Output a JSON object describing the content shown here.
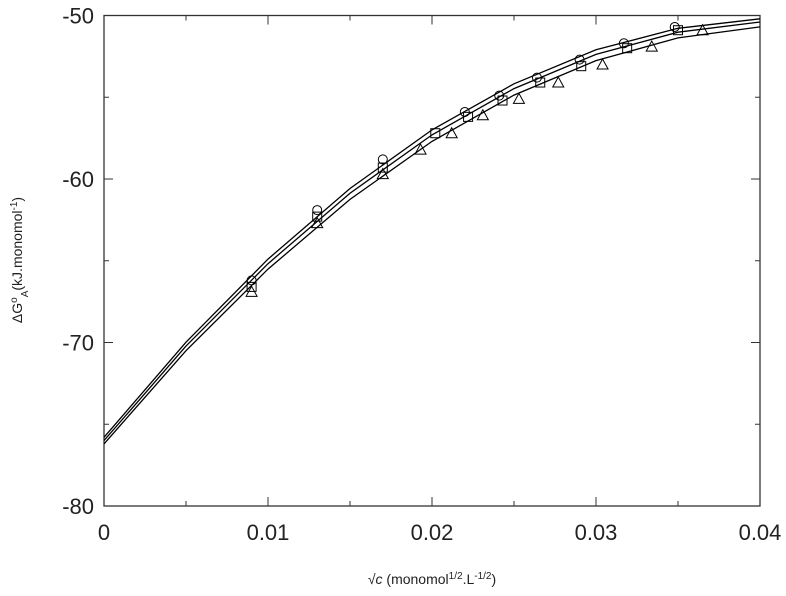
{
  "chart_data": {
    "type": "scatter",
    "xlabel": [
      {
        "t": "√"
      },
      {
        "t": "c",
        "s": "italic"
      },
      {
        "t": " (monomol"
      },
      {
        "t": "1/2",
        "s": "sup"
      },
      {
        "t": ".L"
      },
      {
        "t": "-1/2",
        "s": "sup"
      },
      {
        "t": ")"
      }
    ],
    "ylabel": [
      {
        "t": "ΔG"
      },
      {
        "t": "o",
        "s": "sup"
      },
      {
        "t": "A",
        "s": "sub"
      },
      {
        "t": "(kJ.monomol"
      },
      {
        "t": "-1",
        "s": "sup"
      },
      {
        "t": ")"
      }
    ],
    "xlim": [
      0,
      0.04
    ],
    "ylim": [
      -80,
      -50
    ],
    "xticks": [
      0,
      0.01,
      0.02,
      0.03,
      0.04
    ],
    "yticks": [
      -80,
      -70,
      -60,
      -50
    ],
    "xminor": [
      0.005,
      0.015,
      0.025,
      0.035
    ],
    "yminor": [
      -75,
      -65,
      -55
    ],
    "color": "#000000",
    "series": [
      {
        "marker": "circle",
        "x": [
          0.009,
          0.013,
          0.017,
          0.022,
          0.0241,
          0.0264,
          0.029,
          0.0317,
          0.0348
        ],
        "values": [
          -66.2,
          -61.9,
          -58.8,
          -55.9,
          -54.9,
          -53.8,
          -52.7,
          -51.7,
          -50.7
        ]
      },
      {
        "marker": "square",
        "x": [
          0.009,
          0.013,
          0.017,
          0.0202,
          0.0222,
          0.0243,
          0.0266,
          0.0291,
          0.0319,
          0.035
        ],
        "values": [
          -66.6,
          -62.3,
          -59.3,
          -57.2,
          -56.2,
          -55.2,
          -54.1,
          -53.1,
          -52.0,
          -50.9
        ]
      },
      {
        "marker": "triangle",
        "x": [
          0.009,
          0.013,
          0.017,
          0.0193,
          0.0212,
          0.0231,
          0.0253,
          0.0277,
          0.0304,
          0.0334,
          0.0365
        ],
        "values": [
          -66.9,
          -62.7,
          -59.7,
          -58.2,
          -57.2,
          -56.1,
          -55.1,
          -54.1,
          -53.0,
          -51.9,
          -50.9
        ]
      }
    ],
    "fits": [
      {
        "x": [
          0,
          0.005,
          0.01,
          0.015,
          0.02,
          0.025,
          0.03,
          0.035,
          0.04
        ],
        "values": [
          -75.8,
          -69.98,
          -64.9,
          -60.58,
          -57.0,
          -54.18,
          -52.1,
          -50.78,
          -50.2
        ]
      },
      {
        "x": [
          0,
          0.005,
          0.01,
          0.015,
          0.02,
          0.025,
          0.03,
          0.035,
          0.04
        ],
        "values": [
          -76.0,
          -70.22,
          -65.18,
          -60.87,
          -57.3,
          -54.47,
          -52.38,
          -51.02,
          -50.4
        ]
      },
      {
        "x": [
          0,
          0.005,
          0.01,
          0.015,
          0.02,
          0.025,
          0.03,
          0.035,
          0.04
        ],
        "values": [
          -76.2,
          -70.5,
          -65.51,
          -61.25,
          -57.7,
          -54.87,
          -52.76,
          -51.37,
          -50.7
        ]
      }
    ]
  }
}
